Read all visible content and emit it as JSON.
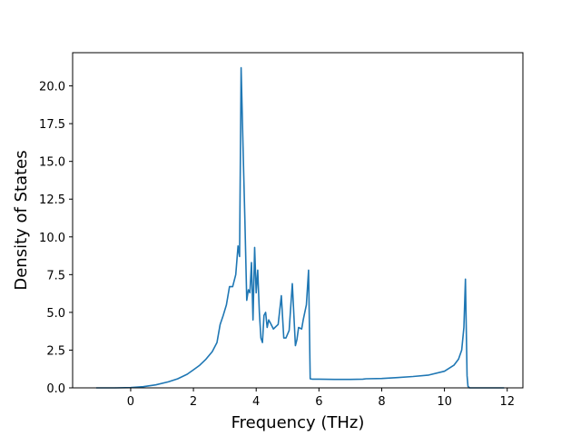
{
  "chart_data": {
    "type": "line",
    "title": "",
    "xlabel": "Frequency (THz)",
    "ylabel": "Density of States",
    "xlim": [
      -1.85,
      12.5
    ],
    "ylim": [
      0,
      22.2
    ],
    "grid": false,
    "legend": "none",
    "xticks": [
      0,
      2,
      4,
      6,
      8,
      10,
      12
    ],
    "yticks": [
      0.0,
      2.5,
      5.0,
      7.5,
      10.0,
      12.5,
      15.0,
      17.5,
      20.0
    ],
    "xtick_labels": [
      "0",
      "2",
      "4",
      "6",
      "8",
      "10",
      "12"
    ],
    "ytick_labels": [
      "0.0",
      "2.5",
      "5.0",
      "7.5",
      "10.0",
      "12.5",
      "15.0",
      "17.5",
      "20.0"
    ],
    "line_color": "#1f77b4",
    "series": [
      {
        "x": [
          -1.1,
          -0.5,
          0.0,
          0.4,
          0.8,
          1.2,
          1.5,
          1.8,
          2.0,
          2.2,
          2.4,
          2.6,
          2.75,
          2.85,
          2.95,
          3.05,
          3.15,
          3.25,
          3.35,
          3.42,
          3.47,
          3.52,
          3.58,
          3.64,
          3.7,
          3.75,
          3.8,
          3.85,
          3.9,
          3.95,
          4.0,
          4.05,
          4.1,
          4.15,
          4.2,
          4.25,
          4.3,
          4.35,
          4.4,
          4.45,
          4.5,
          4.55,
          4.6,
          4.7,
          4.8,
          4.88,
          4.95,
          5.05,
          5.15,
          5.25,
          5.3,
          5.35,
          5.45,
          5.5,
          5.6,
          5.67,
          5.72,
          5.78,
          6.0,
          6.5,
          7.0,
          7.4,
          7.5,
          8.0,
          8.5,
          9.0,
          9.5,
          10.0,
          10.3,
          10.45,
          10.55,
          10.62,
          10.67,
          10.72,
          10.75,
          10.8,
          11.0,
          11.9
        ],
        "y": [
          0.0,
          0.0,
          0.02,
          0.08,
          0.2,
          0.4,
          0.6,
          0.9,
          1.2,
          1.5,
          1.9,
          2.4,
          3.0,
          4.2,
          4.8,
          5.5,
          6.7,
          6.7,
          7.5,
          9.4,
          8.7,
          21.2,
          16.0,
          11.0,
          5.8,
          6.5,
          6.3,
          8.3,
          4.5,
          9.3,
          6.3,
          7.8,
          5.0,
          3.3,
          3.0,
          4.8,
          5.0,
          4.0,
          4.5,
          4.3,
          4.1,
          3.9,
          4.0,
          4.2,
          6.1,
          3.3,
          3.3,
          3.8,
          6.9,
          2.8,
          3.2,
          4.0,
          3.9,
          4.5,
          5.5,
          7.8,
          0.6,
          0.58,
          0.58,
          0.56,
          0.56,
          0.58,
          0.6,
          0.62,
          0.68,
          0.75,
          0.85,
          1.1,
          1.5,
          1.9,
          2.5,
          4.0,
          7.2,
          0.8,
          0.1,
          0.0,
          0.0,
          0.0
        ]
      }
    ]
  }
}
